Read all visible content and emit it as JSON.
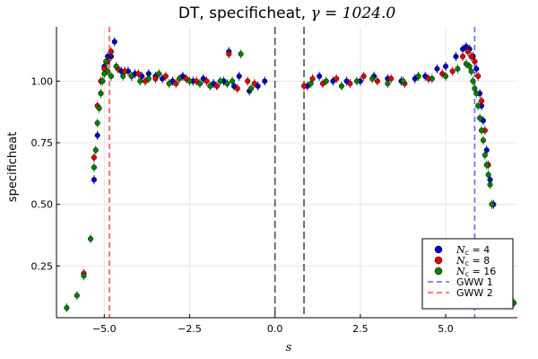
{
  "chart_data": {
    "type": "scatter",
    "title": "DT, specificheat, γ = 1024.0",
    "title_main": "DT, specificheat, ",
    "title_math": "γ = 1024.0",
    "xlabel": "s",
    "ylabel": "specificheat",
    "xlim": [
      -6.4,
      7.1
    ],
    "ylim": [
      0.04,
      1.22
    ],
    "xticks": [
      -5.0,
      -2.5,
      0.0,
      2.5,
      5.0
    ],
    "xtick_labels": [
      "−5.0",
      "−2.5",
      "0.0",
      "2.5",
      "5.0"
    ],
    "yticks": [
      0.25,
      0.5,
      0.75,
      1.0
    ],
    "ytick_labels": [
      "0.25",
      "0.50",
      "0.75",
      "1.00"
    ],
    "grid": true,
    "legend_position": "bottom-right",
    "series": [
      {
        "name_math": "N",
        "name_sub": "c",
        "name_suffix": " = 4",
        "color": "#0000c8",
        "x": [
          -5.3,
          -5.2,
          -5.1,
          -5.0,
          -4.9,
          -4.8,
          -4.7,
          -4.5,
          -4.3,
          -4.1,
          -3.9,
          -3.7,
          -3.5,
          -3.3,
          -3.0,
          -2.7,
          -2.4,
          -2.1,
          -1.8,
          -1.5,
          -1.35,
          -1.2,
          -1.05,
          -0.75,
          -0.5,
          -0.3,
          0.95,
          1.3,
          1.7,
          2.1,
          2.5,
          2.9,
          3.3,
          3.7,
          4.1,
          4.4,
          4.75,
          5.0,
          5.3,
          5.5,
          5.6,
          5.7,
          5.8,
          5.9,
          6.0,
          6.05,
          6.1,
          6.2,
          6.3,
          6.4
        ],
        "y": [
          0.6,
          0.78,
          0.95,
          1.06,
          1.1,
          1.1,
          1.16,
          1.04,
          1.04,
          1.03,
          1.02,
          1.03,
          1.02,
          1.01,
          1.0,
          1.02,
          1.0,
          1.01,
          0.99,
          1.0,
          1.12,
          0.98,
          1.02,
          0.96,
          0.98,
          1.0,
          0.98,
          1.02,
          1.0,
          1.0,
          1.0,
          1.02,
          1.01,
          1.0,
          1.01,
          1.02,
          1.05,
          1.06,
          1.1,
          1.13,
          1.14,
          1.13,
          1.1,
          1.05,
          0.95,
          0.9,
          0.84,
          0.72,
          0.6,
          0.5
        ]
      },
      {
        "name_math": "N",
        "name_sub": "c",
        "name_suffix": " = 8",
        "color": "#e00000",
        "x": [
          -5.6,
          -5.3,
          -5.2,
          -5.1,
          -5.0,
          -4.9,
          -4.8,
          -4.6,
          -4.4,
          -4.2,
          -4.0,
          -3.8,
          -3.5,
          -3.2,
          -2.9,
          -2.6,
          -2.3,
          -2.0,
          -1.7,
          -1.35,
          -1.1,
          -0.8,
          -0.6,
          0.85,
          1.1,
          1.4,
          1.8,
          2.2,
          2.6,
          3.0,
          3.4,
          3.8,
          4.2,
          4.5,
          4.9,
          5.2,
          5.5,
          5.65,
          5.75,
          5.85,
          5.95,
          6.05,
          6.15,
          6.25
        ],
        "y": [
          0.22,
          0.69,
          0.9,
          1.0,
          1.05,
          1.08,
          1.12,
          1.05,
          1.04,
          1.02,
          1.03,
          1.0,
          1.01,
          1.02,
          0.99,
          1.01,
          1.0,
          1.0,
          0.98,
          1.11,
          0.97,
          1.0,
          0.99,
          0.98,
          1.01,
          0.99,
          1.01,
          0.99,
          1.02,
          1.0,
          1.01,
          0.99,
          1.02,
          1.01,
          1.03,
          1.04,
          1.1,
          1.12,
          1.1,
          1.08,
          1.02,
          0.92,
          0.8,
          0.66
        ]
      },
      {
        "name_math": "N",
        "name_sub": "c",
        "name_suffix": " = 16",
        "color": "#008000",
        "x": [
          -6.1,
          -5.8,
          -5.6,
          -5.4,
          -5.3,
          -5.25,
          -5.2,
          -5.15,
          -5.1,
          -5.05,
          -5.0,
          -4.95,
          -4.9,
          -4.8,
          -4.65,
          -4.45,
          -4.2,
          -3.95,
          -3.7,
          -3.4,
          -3.1,
          -2.8,
          -2.5,
          -2.2,
          -1.9,
          -1.6,
          -1.4,
          -1.25,
          -1.0,
          -0.7,
          1.05,
          1.5,
          1.95,
          2.4,
          2.85,
          3.3,
          3.75,
          4.2,
          4.6,
          5.0,
          5.35,
          5.6,
          5.7,
          5.75,
          5.8,
          5.85,
          5.9,
          5.95,
          6.0,
          6.05,
          6.1,
          6.15,
          6.2,
          6.25,
          6.3,
          6.35,
          7.0
        ],
        "y": [
          0.08,
          0.13,
          0.21,
          0.36,
          0.65,
          0.72,
          0.83,
          0.89,
          0.95,
          1.0,
          1.03,
          1.08,
          1.04,
          1.02,
          1.06,
          1.02,
          1.02,
          1.0,
          1.01,
          1.03,
          0.99,
          1.01,
          1.0,
          0.99,
          0.98,
          1.0,
          0.99,
          1.0,
          1.11,
          0.97,
          0.99,
          1.0,
          0.98,
          1.0,
          1.01,
          0.99,
          1.0,
          1.02,
          1.01,
          1.02,
          1.05,
          1.07,
          1.06,
          1.04,
          1.0,
          0.97,
          0.95,
          0.9,
          0.85,
          0.8,
          0.76,
          0.7,
          0.66,
          0.62,
          0.58,
          0.5,
          0.1
        ]
      }
    ],
    "vlines": [
      {
        "name": "GWW 1",
        "x": 5.85,
        "color": "#6464ff",
        "dash": "6,4",
        "in_legend": true
      },
      {
        "name": "GWW 2",
        "x": -4.85,
        "color": "#ff5050",
        "dash": "6,4",
        "in_legend": true
      },
      {
        "name": "",
        "x": 0.0,
        "color": "#505050",
        "dash": "8,4",
        "in_legend": false
      },
      {
        "name": "",
        "x": 0.85,
        "color": "#505050",
        "dash": "8,4",
        "in_legend": false
      }
    ]
  }
}
